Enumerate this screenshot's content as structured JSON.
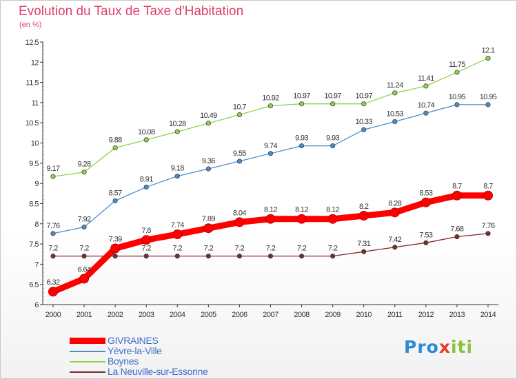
{
  "title": "Evolution du Taux de Taxe d'Habitation",
  "subtitle": "(en %)",
  "logo": {
    "part1": "Pro",
    "part2": "x",
    "part3": "iti"
  },
  "chart_data": {
    "type": "line",
    "x": [
      "2000",
      "2001",
      "2002",
      "2003",
      "2004",
      "2005",
      "2006",
      "2007",
      "2008",
      "2009",
      "2010",
      "2011",
      "2012",
      "2013",
      "2014"
    ],
    "ylim": [
      6,
      12.5
    ],
    "yticks": [
      "6",
      "6.5",
      "7",
      "7.5",
      "8",
      "8.5",
      "9",
      "9.5",
      "10",
      "10.5",
      "11",
      "11.5",
      "12",
      "12.5"
    ],
    "grid": false,
    "legend_position": "bottom-left",
    "series": [
      {
        "name": "GIVRAINES",
        "color": "#ff0000",
        "values": [
          6.32,
          6.64,
          7.39,
          7.6,
          7.74,
          7.89,
          8.04,
          8.12,
          8.12,
          8.12,
          8.2,
          8.28,
          8.53,
          8.7,
          8.7
        ],
        "labels": [
          "6.32",
          "6.64",
          "7.39",
          "7.6",
          "7.74",
          "7.89",
          "8.04",
          "8.12",
          "8.12",
          "8.12",
          "8.2",
          "8.28",
          "8.53",
          "8.7",
          "8.7"
        ]
      },
      {
        "name": "Yèvre-la-Ville",
        "color": "#4a8ccc",
        "values": [
          7.76,
          7.92,
          8.57,
          8.91,
          9.18,
          9.36,
          9.55,
          9.74,
          9.93,
          9.93,
          10.33,
          10.53,
          10.74,
          10.95,
          10.95
        ],
        "labels": [
          "7.76",
          "7.92",
          "8.57",
          "8.91",
          "9.18",
          "9.36",
          "9.55",
          "9.74",
          "9.93",
          "9.93",
          "10.33",
          "10.53",
          "10.74",
          "10.95",
          "10.95"
        ]
      },
      {
        "name": "Boynes",
        "color": "#8ed24a",
        "values": [
          9.17,
          9.28,
          9.88,
          10.08,
          10.28,
          10.49,
          10.7,
          10.92,
          10.97,
          10.97,
          10.97,
          11.24,
          11.41,
          11.75,
          12.1
        ],
        "labels": [
          "9.17",
          "9.28",
          "9.88",
          "10.08",
          "10.28",
          "10.49",
          "10.7",
          "10.92",
          "10.97",
          "10.97",
          "10.97",
          "11.24",
          "11.41",
          "11.75",
          "12.1"
        ]
      },
      {
        "name": "La Neuville-sur-Essonne",
        "color": "#7a2a2a",
        "values": [
          7.2,
          7.2,
          7.2,
          7.2,
          7.2,
          7.2,
          7.2,
          7.2,
          7.2,
          7.2,
          7.31,
          7.42,
          7.53,
          7.68,
          7.76
        ],
        "labels": [
          "7.2",
          "7.2",
          "7.2",
          "7.2",
          "7.2",
          "7.2",
          "7.2",
          "7.2",
          "7.2",
          "7.2",
          "7.31",
          "7.42",
          "7.53",
          "7.68",
          "7.76"
        ]
      }
    ]
  }
}
